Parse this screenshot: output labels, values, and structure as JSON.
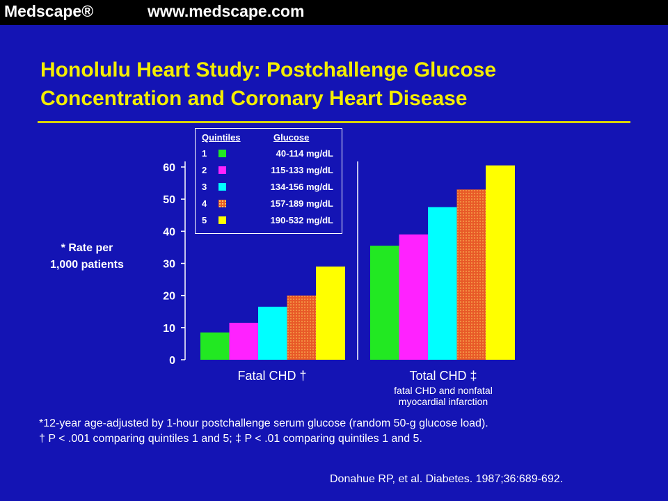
{
  "header": {
    "brand": "Medscape®",
    "website": "www.medscape.com"
  },
  "title": "Honolulu Heart Study: Postchallenge Glucose Concentration and Coronary Heart Disease",
  "y_axis_label_lines": [
    "* Rate per",
    "1,000 patients"
  ],
  "legend": {
    "heading_quintiles": "Quintiles",
    "heading_glucose": "Glucose",
    "items": [
      {
        "num": "1",
        "range": "40-114 mg/dL",
        "color": "#22e822"
      },
      {
        "num": "2",
        "range": "115-133 mg/dL",
        "color": "#ff22ff"
      },
      {
        "num": "3",
        "range": "134-156 mg/dL",
        "color": "#00ffff"
      },
      {
        "num": "4",
        "range": "157-189 mg/dL",
        "color": "#e85a28"
      },
      {
        "num": "5",
        "range": "190-532 mg/dL",
        "color": "#ffff00"
      }
    ]
  },
  "chart_data": {
    "type": "bar",
    "title": "Honolulu Heart Study: Postchallenge Glucose Concentration and Coronary Heart Disease",
    "xlabel": "",
    "ylabel": "* Rate per 1,000 patients",
    "ylim": [
      0,
      60
    ],
    "yticks": [
      0,
      10,
      20,
      30,
      40,
      50,
      60
    ],
    "grid": false,
    "legend_position": "top-left",
    "categories": [
      "Fatal CHD †",
      "Total CHD ‡"
    ],
    "category_sublabels": [
      "",
      "fatal CHD and nonfatal myocardial infarction"
    ],
    "category_sublabel_lines": [
      [],
      [
        "fatal CHD and nonfatal",
        "myocardial infarction"
      ]
    ],
    "series": [
      {
        "name": "1",
        "values": [
          8.5,
          35.5
        ],
        "color": "#22e822"
      },
      {
        "name": "2",
        "values": [
          11.5,
          39
        ],
        "color": "#ff22ff"
      },
      {
        "name": "3",
        "values": [
          16.5,
          47.5
        ],
        "color": "#00ffff"
      },
      {
        "name": "4",
        "values": [
          20,
          53
        ],
        "color": "#e85a28"
      },
      {
        "name": "5",
        "values": [
          29,
          60.5
        ],
        "color": "#ffff00"
      }
    ]
  },
  "footnotes": [
    "*12-year age-adjusted by 1-hour postchallenge serum glucose (random 50-g glucose load).",
    "† P < .001 comparing quintiles 1 and 5;  ‡ P < .01 comparing quintiles 1 and 5."
  ],
  "citation": "Donahue RP, et al. Diabetes. 1987;36:689-692."
}
